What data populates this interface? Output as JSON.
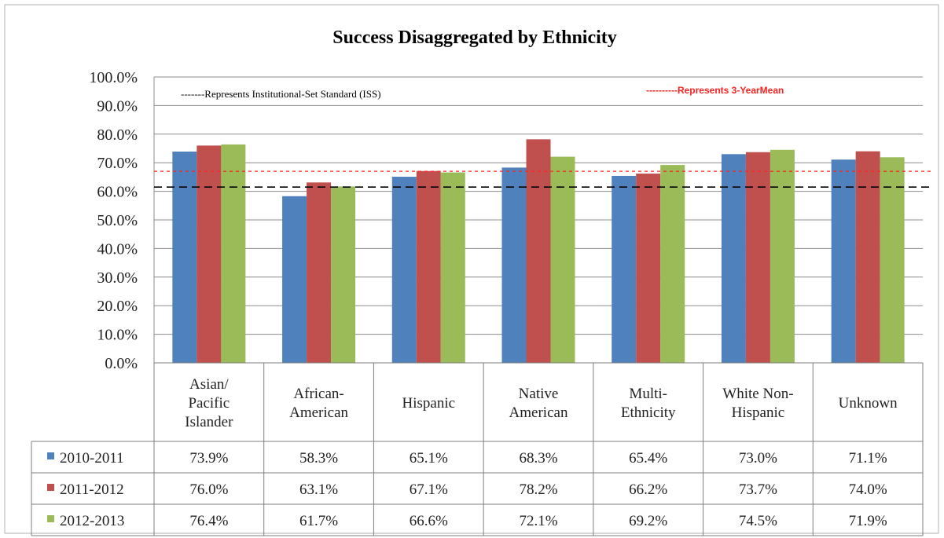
{
  "chart_data": {
    "type": "bar",
    "title": "Success Disaggregated by Ethnicity",
    "categories": [
      [
        "Asian/",
        "Pacific",
        "Islander"
      ],
      [
        "African-",
        "American"
      ],
      [
        "Hispanic"
      ],
      [
        "Native",
        "American"
      ],
      [
        "Multi-",
        "Ethnicity"
      ],
      [
        "White Non-",
        "Hispanic"
      ],
      [
        "Unknown"
      ]
    ],
    "series": [
      {
        "name": "2010-2011",
        "color": "#4f81bd",
        "values": [
          73.9,
          58.3,
          65.1,
          68.3,
          65.4,
          73.0,
          71.1
        ],
        "labels": [
          "73.9%",
          "58.3%",
          "65.1%",
          "68.3%",
          "65.4%",
          "73.0%",
          "71.1%"
        ]
      },
      {
        "name": "2011-2012",
        "color": "#c0504d",
        "values": [
          76.0,
          63.1,
          67.1,
          78.2,
          66.2,
          73.7,
          74.0
        ],
        "labels": [
          "76.0%",
          "63.1%",
          "67.1%",
          "78.2%",
          "66.2%",
          "73.7%",
          "74.0%"
        ]
      },
      {
        "name": "2012-2013",
        "color": "#9bbb59",
        "values": [
          76.4,
          61.7,
          66.6,
          72.1,
          69.2,
          74.5,
          71.9
        ],
        "labels": [
          "76.4%",
          "61.7%",
          "66.6%",
          "72.1%",
          "69.2%",
          "74.5%",
          "71.9%"
        ]
      }
    ],
    "yticks": [
      "0.0%",
      "10.0%",
      "20.0%",
      "30.0%",
      "40.0%",
      "50.0%",
      "60.0%",
      "70.0%",
      "80.0%",
      "90.0%",
      "100.0%"
    ],
    "ylim": [
      0,
      100
    ],
    "grid": true,
    "reference_lines": [
      {
        "label": "-------Represents Institutional-Set Standard (ISS)",
        "value": 61.5,
        "color": "#000000"
      },
      {
        "label": "----------Represents 3-YearMean",
        "value": 67.0,
        "color": "#ff2020"
      }
    ],
    "data_table": true
  }
}
